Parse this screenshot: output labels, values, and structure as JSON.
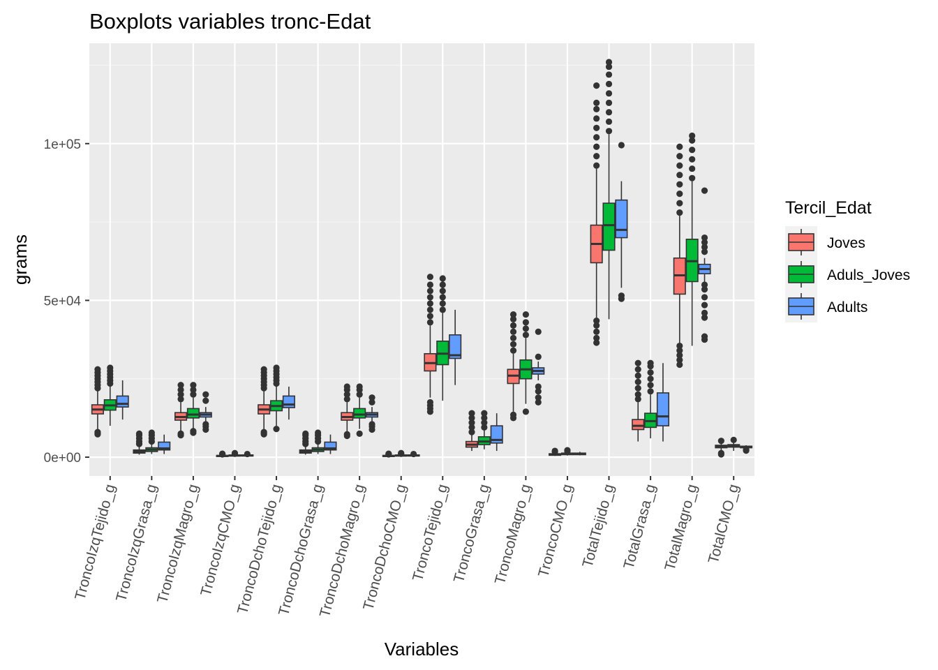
{
  "chart_data": {
    "type": "boxplot",
    "title": "Boxplots variables tronc-Edat",
    "xlabel": "Variables",
    "ylabel": "grams",
    "ylim": [
      -6000,
      132000
    ],
    "y_ticks": [
      0,
      50000,
      100000
    ],
    "y_tick_labels": [
      "0e+00",
      "5e+04",
      "1e+05"
    ],
    "y_minor_ticks": [
      25000,
      75000,
      125000
    ],
    "grid": true,
    "legend": {
      "title": "Tercil_Edat",
      "position": "right",
      "entries": [
        {
          "label": "Joves",
          "color": "#F8766D"
        },
        {
          "label": "Aduls_Joves",
          "color": "#00BA38"
        },
        {
          "label": "Adults",
          "color": "#619CFF"
        }
      ]
    },
    "categories": [
      "TroncoIzqTejido_g",
      "TroncoIzqGrasa_g",
      "TroncoIzqMagro_g",
      "TroncoIzqCMO_g",
      "TroncoDchoTejido_g",
      "TroncoDchoGrasa_g",
      "TroncoDchoMagro_g",
      "TroncoDchoCMO_g",
      "TroncoTejido_g",
      "TroncoGrasa_g",
      "TroncoMagro_g",
      "TroncoCMO_g",
      "TotalTejido_g",
      "TotalGrasa_g",
      "TotalMagro_g",
      "TotalCMO_g"
    ],
    "series": [
      {
        "name": "Joves",
        "boxes": [
          {
            "whisker_low": 8000,
            "q1": 13800,
            "median": 15200,
            "q3": 16700,
            "whisker_high": 21500,
            "outliers_low": [
              7300,
              7700,
              8000
            ],
            "outliers_high": [
              22000,
              23000,
              24000,
              25000,
              26000,
              27000,
              28000
            ]
          },
          {
            "whisker_low": 800,
            "q1": 1300,
            "median": 1800,
            "q3": 2300,
            "whisker_high": 3800,
            "outliers_low": [],
            "outliers_high": [
              4200,
              5000,
              6000,
              7000,
              7500
            ]
          },
          {
            "whisker_low": 8000,
            "q1": 11800,
            "median": 12800,
            "q3": 14200,
            "whisker_high": 17500,
            "outliers_low": [
              7000,
              7500
            ],
            "outliers_high": [
              18500,
              20000,
              21500,
              23000
            ]
          },
          {
            "whisker_low": 200,
            "q1": 300,
            "median": 400,
            "q3": 550,
            "whisker_high": 800,
            "outliers_low": [],
            "outliers_high": [
              900,
              1000,
              1100
            ]
          },
          {
            "whisker_low": 8000,
            "q1": 13800,
            "median": 15200,
            "q3": 16700,
            "whisker_high": 21500,
            "outliers_low": [
              7300,
              7700,
              8000
            ],
            "outliers_high": [
              22000,
              23000,
              24000,
              25000,
              26000,
              27000,
              28000
            ]
          },
          {
            "whisker_low": 800,
            "q1": 1300,
            "median": 1800,
            "q3": 2300,
            "whisker_high": 3800,
            "outliers_low": [],
            "outliers_high": [
              4200,
              5000,
              6000,
              7000,
              7500
            ]
          },
          {
            "whisker_low": 8000,
            "q1": 11800,
            "median": 12800,
            "q3": 14200,
            "whisker_high": 17500,
            "outliers_low": [
              6800,
              7300
            ],
            "outliers_high": [
              18500,
              20000,
              21500,
              22500
            ]
          },
          {
            "whisker_low": 200,
            "q1": 300,
            "median": 400,
            "q3": 550,
            "whisker_high": 800,
            "outliers_low": [],
            "outliers_high": [
              900,
              1000,
              1100
            ]
          },
          {
            "whisker_low": 19000,
            "q1": 27500,
            "median": 30000,
            "q3": 33000,
            "whisker_high": 42000,
            "outliers_low": [
              14500,
              15500,
              16500,
              17500
            ],
            "outliers_high": [
              43000,
              45000,
              47000,
              49000,
              51000,
              53000,
              55000,
              57500
            ]
          },
          {
            "whisker_low": 2000,
            "q1": 3200,
            "median": 4000,
            "q3": 5000,
            "whisker_high": 7500,
            "outliers_low": [],
            "outliers_high": [
              8000,
              9500,
              11000,
              12500,
              14000
            ]
          },
          {
            "whisker_low": 14500,
            "q1": 23500,
            "median": 26000,
            "q3": 28000,
            "whisker_high": 33000,
            "outliers_low": [
              12500,
              13500
            ],
            "outliers_high": [
              34000,
              36000,
              38000,
              40000,
              42000,
              44000,
              45500
            ]
          },
          {
            "whisker_low": 400,
            "q1": 600,
            "median": 800,
            "q3": 1100,
            "whisker_high": 1500,
            "outliers_low": [],
            "outliers_high": [
              1700,
              2000
            ]
          },
          {
            "whisker_low": 44000,
            "q1": 62000,
            "median": 68000,
            "q3": 74000,
            "whisker_high": 92000,
            "outliers_low": [
              36500,
              38000,
              40000,
              42000,
              43500
            ],
            "outliers_high": [
              93000,
              96000,
              99000,
              102000,
              105000,
              108000,
              111000,
              113000,
              118500
            ]
          },
          {
            "whisker_low": 5000,
            "q1": 8800,
            "median": 10000,
            "q3": 12000,
            "whisker_high": 17500,
            "outliers_low": [],
            "outliers_high": [
              18500,
              20000,
              22000,
              24000,
              26000,
              28000,
              30000
            ]
          },
          {
            "whisker_low": 36000,
            "q1": 52000,
            "median": 58000,
            "q3": 63500,
            "whisker_high": 77000,
            "outliers_low": [
              29500,
              31000,
              32500,
              34000,
              35500
            ],
            "outliers_high": [
              78000,
              81000,
              84000,
              87000,
              90000,
              93000,
              96000,
              99000
            ]
          },
          {
            "whisker_low": 1500,
            "q1": 3000,
            "median": 3400,
            "q3": 3800,
            "whisker_high": 4800,
            "outliers_low": [
              900,
              1300
            ],
            "outliers_high": [
              5200
            ]
          }
        ]
      },
      {
        "name": "Aduls_Joves",
        "boxes": [
          {
            "whisker_low": 10000,
            "q1": 15000,
            "median": 16500,
            "q3": 18300,
            "whisker_high": 22500,
            "outliers_low": [],
            "outliers_high": [
              23500,
              24500,
              25500,
              26500,
              27500,
              28500
            ]
          },
          {
            "whisker_low": 1000,
            "q1": 1800,
            "median": 2400,
            "q3": 3000,
            "whisker_high": 4500,
            "outliers_low": [],
            "outliers_high": [
              5000,
              6000,
              7000,
              7800
            ]
          },
          {
            "whisker_low": 9000,
            "q1": 12500,
            "median": 13600,
            "q3": 15500,
            "whisker_high": 19000,
            "outliers_low": [
              7800,
              8300
            ],
            "outliers_high": [
              20000,
              21500,
              23000
            ]
          },
          {
            "whisker_low": 250,
            "q1": 400,
            "median": 500,
            "q3": 700,
            "whisker_high": 1000,
            "outliers_low": [],
            "outliers_high": [
              1100,
              1300
            ]
          },
          {
            "whisker_low": 10000,
            "q1": 14800,
            "median": 16300,
            "q3": 18000,
            "whisker_high": 22500,
            "outliers_low": [
              9000
            ],
            "outliers_high": [
              23500,
              24500,
              25500,
              26500,
              27500,
              28500
            ]
          },
          {
            "whisker_low": 1000,
            "q1": 1800,
            "median": 2400,
            "q3": 3000,
            "whisker_high": 4500,
            "outliers_low": [],
            "outliers_high": [
              5000,
              6000,
              7000,
              7800
            ]
          },
          {
            "whisker_low": 9000,
            "q1": 12500,
            "median": 13600,
            "q3": 15500,
            "whisker_high": 19000,
            "outliers_low": [
              7500
            ],
            "outliers_high": [
              20000,
              21500,
              22500
            ]
          },
          {
            "whisker_low": 250,
            "q1": 400,
            "median": 500,
            "q3": 700,
            "whisker_high": 1000,
            "outliers_low": [],
            "outliers_high": [
              1100,
              1300
            ]
          },
          {
            "whisker_low": 18000,
            "q1": 29500,
            "median": 33000,
            "q3": 37000,
            "whisker_high": 46000,
            "outliers_low": [],
            "outliers_high": [
              47000,
              49000,
              51000,
              53000,
              55000,
              57000
            ]
          },
          {
            "whisker_low": 2500,
            "q1": 4000,
            "median": 5000,
            "q3": 6500,
            "whisker_high": 9000,
            "outliers_low": [],
            "outliers_high": [
              9500,
              11000,
              12500,
              14000
            ]
          },
          {
            "whisker_low": 17000,
            "q1": 25000,
            "median": 28000,
            "q3": 31000,
            "whisker_high": 38000,
            "outliers_low": [
              14500
            ],
            "outliers_high": [
              39000,
              41000,
              43000,
              45500
            ]
          },
          {
            "whisker_low": 500,
            "q1": 800,
            "median": 1000,
            "q3": 1300,
            "whisker_high": 1700,
            "outliers_low": [],
            "outliers_high": [
              1900,
              2200
            ]
          },
          {
            "whisker_low": 44000,
            "q1": 66000,
            "median": 74000,
            "q3": 81000,
            "whisker_high": 103000,
            "outliers_low": [],
            "outliers_high": [
              104000,
              107000,
              110000,
              113000,
              116000,
              119000,
              122000,
              124500,
              126000
            ]
          },
          {
            "whisker_low": 6000,
            "q1": 9500,
            "median": 11500,
            "q3": 14000,
            "whisker_high": 20000,
            "outliers_low": [],
            "outliers_high": [
              21000,
              23000,
              25000,
              27000,
              29000,
              30000
            ]
          },
          {
            "whisker_low": 35500,
            "q1": 56000,
            "median": 62500,
            "q3": 69500,
            "whisker_high": 88000,
            "outliers_low": [],
            "outliers_high": [
              89000,
              92000,
              95000,
              98000,
              101000,
              102500
            ]
          },
          {
            "whisker_low": 2000,
            "q1": 3200,
            "median": 3600,
            "q3": 4000,
            "whisker_high": 5000,
            "outliers_low": [],
            "outliers_high": [
              5500
            ]
          }
        ]
      },
      {
        "name": "Adults",
        "boxes": [
          {
            "whisker_low": 12000,
            "q1": 16000,
            "median": 17000,
            "q3": 19500,
            "whisker_high": 24500,
            "outliers_low": [],
            "outliers_high": []
          },
          {
            "whisker_low": 1000,
            "q1": 2300,
            "median": 2800,
            "q3": 4800,
            "whisker_high": 7200,
            "outliers_low": [],
            "outliers_high": []
          },
          {
            "whisker_low": 11000,
            "q1": 12800,
            "median": 13600,
            "q3": 14200,
            "whisker_high": 16000,
            "outliers_low": [
              8800,
              9800,
              10500
            ],
            "outliers_high": [
              18000,
              20000
            ]
          },
          {
            "whisker_low": 300,
            "q1": 450,
            "median": 550,
            "q3": 700,
            "whisker_high": 900,
            "outliers_low": [],
            "outliers_high": [
              1000
            ]
          },
          {
            "whisker_low": 12000,
            "q1": 15800,
            "median": 16800,
            "q3": 19500,
            "whisker_high": 22500,
            "outliers_low": [],
            "outliers_high": []
          },
          {
            "whisker_low": 1000,
            "q1": 2300,
            "median": 2800,
            "q3": 4800,
            "whisker_high": 7200,
            "outliers_low": [],
            "outliers_high": []
          },
          {
            "whisker_low": 11000,
            "q1": 12800,
            "median": 13600,
            "q3": 14200,
            "whisker_high": 16000,
            "outliers_low": [
              8800,
              9800,
              10500
            ],
            "outliers_high": [
              17500,
              19000
            ]
          },
          {
            "whisker_low": 300,
            "q1": 450,
            "median": 550,
            "q3": 700,
            "whisker_high": 900,
            "outliers_low": [],
            "outliers_high": [
              1000
            ]
          },
          {
            "whisker_low": 23000,
            "q1": 31500,
            "median": 32500,
            "q3": 39000,
            "whisker_high": 47000,
            "outliers_low": [],
            "outliers_high": []
          },
          {
            "whisker_low": 2000,
            "q1": 4500,
            "median": 5500,
            "q3": 10000,
            "whisker_high": 14000,
            "outliers_low": [],
            "outliers_high": []
          },
          {
            "whisker_low": 24500,
            "q1": 26500,
            "median": 27500,
            "q3": 28500,
            "whisker_high": 30500,
            "outliers_low": [
              17500,
              19000,
              21000,
              22500
            ],
            "outliers_high": [
              32000,
              40000
            ]
          },
          {
            "whisker_low": 600,
            "q1": 800,
            "median": 1000,
            "q3": 1300,
            "whisker_high": 1700,
            "outliers_low": [],
            "outliers_high": []
          },
          {
            "whisker_low": 54000,
            "q1": 70000,
            "median": 72500,
            "q3": 82000,
            "whisker_high": 88000,
            "outliers_low": [
              50500,
              51500
            ],
            "outliers_high": [
              99500
            ]
          },
          {
            "whisker_low": 5000,
            "q1": 10000,
            "median": 13000,
            "q3": 20500,
            "whisker_high": 30000,
            "outliers_low": [],
            "outliers_high": []
          },
          {
            "whisker_low": 56000,
            "q1": 58500,
            "median": 60000,
            "q3": 61500,
            "whisker_high": 63500,
            "outliers_low": [
              37500,
              38500,
              44500,
              46000,
              48500,
              51000,
              53500,
              55000
            ],
            "outliers_high": [
              65500,
              67000,
              68500,
              70000,
              85000
            ]
          },
          {
            "whisker_low": 2500,
            "q1": 3000,
            "median": 3300,
            "q3": 3500,
            "whisker_high": 3800,
            "outliers_low": [
              2100,
              2400
            ],
            "outliers_high": []
          }
        ]
      }
    ]
  }
}
